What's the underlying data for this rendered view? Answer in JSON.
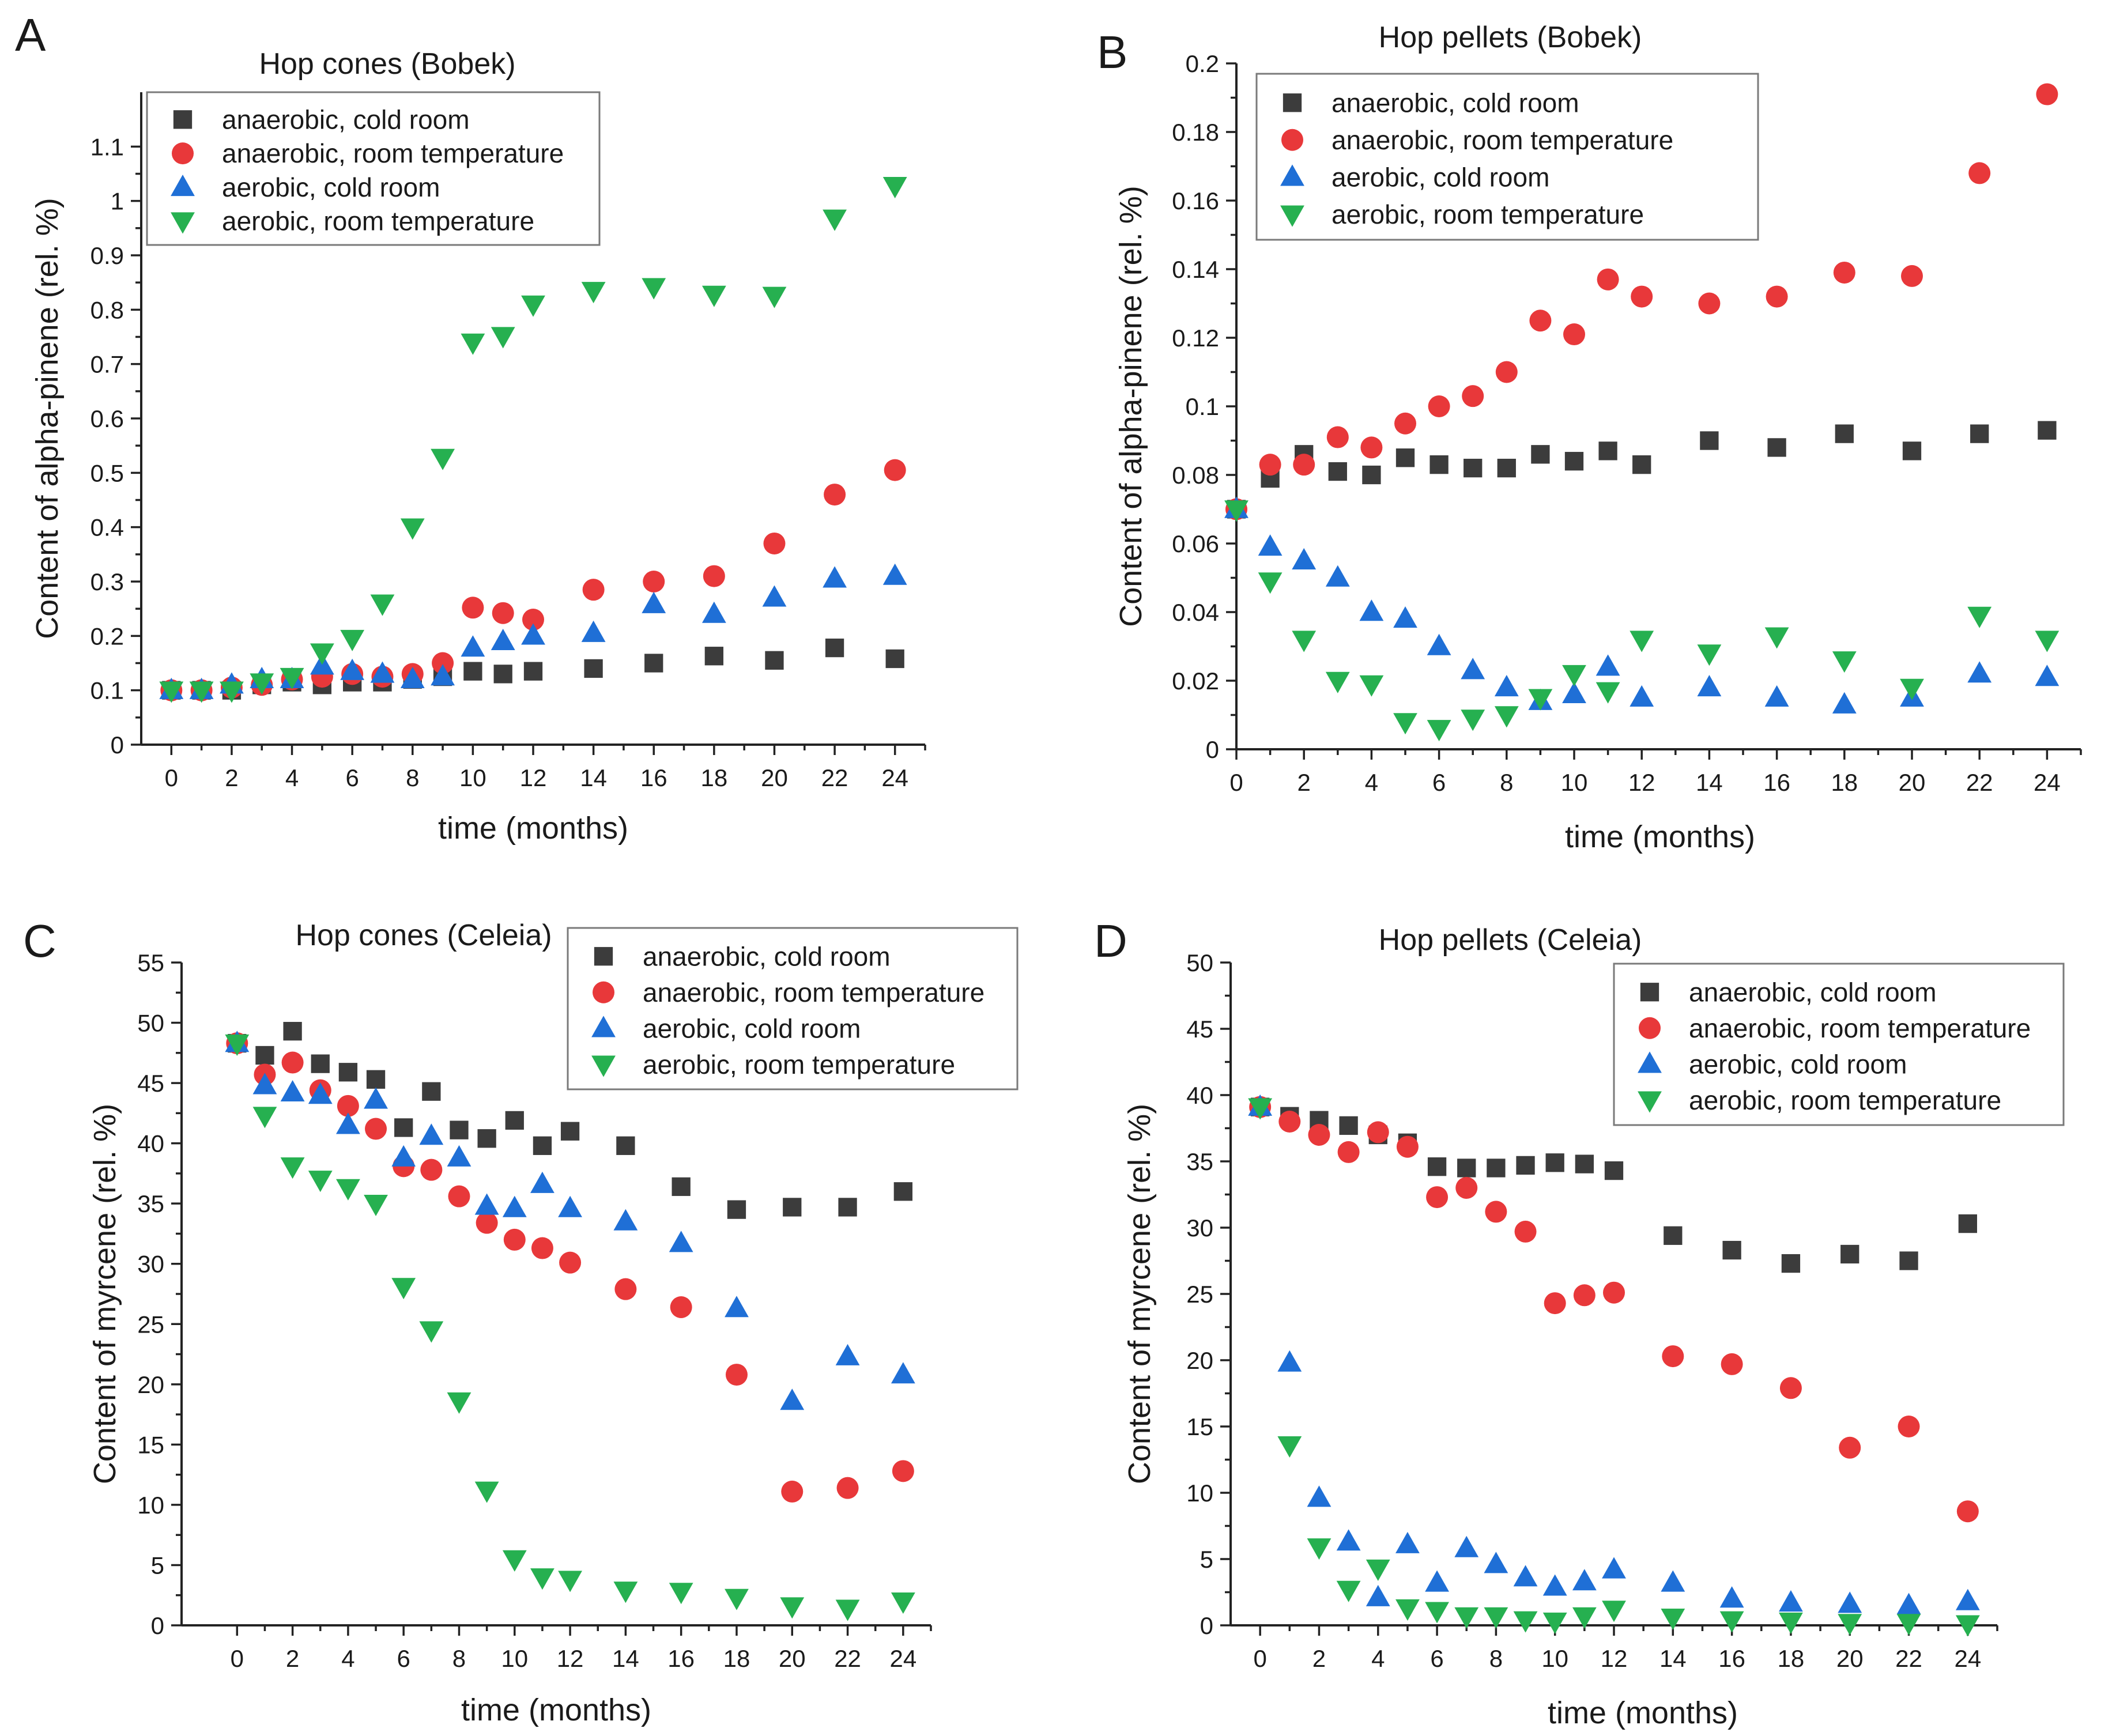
{
  "figure": {
    "colors": {
      "anaerobic_cold": "#3c3c3c",
      "anaerobic_room": "#e8383a",
      "aerobic_cold": "#1f6fd6",
      "aerobic_room": "#26b050"
    }
  },
  "chart_data": [
    {
      "id": "A",
      "panel_letter": "A",
      "type": "scatter",
      "title": "Hop cones (Bobek)",
      "xlabel": "time (months)",
      "ylabel": "Content of alpha-pinene (rel. %)",
      "xlim": [
        -1,
        25
      ],
      "ylim": [
        0,
        1.2
      ],
      "xticks": [
        0,
        2,
        4,
        6,
        8,
        10,
        12,
        14,
        16,
        18,
        20,
        22,
        24
      ],
      "yticks": [
        0,
        0.1,
        0.2,
        0.3,
        0.4,
        0.5,
        0.6,
        0.7,
        0.8,
        0.9,
        1,
        1.1
      ],
      "ytick_labels": [
        "0",
        "0.1",
        "0.2",
        "0.3",
        "0.4",
        "0.5",
        "0.6",
        "0.7",
        "0.8",
        "0.9",
        "1",
        "1.1"
      ],
      "legend_position": "top-left",
      "x": [
        0,
        1,
        2,
        3,
        4,
        5,
        6,
        7,
        8,
        9,
        10,
        11,
        12,
        14,
        16,
        18,
        20,
        22,
        24
      ],
      "series": [
        {
          "name": "anaerobic, cold room",
          "marker": "square",
          "color_key": "anaerobic_cold",
          "values": [
            0.1,
            0.1,
            0.1,
            0.11,
            0.115,
            0.11,
            0.115,
            0.115,
            0.12,
            0.125,
            0.135,
            0.13,
            0.135,
            0.14,
            0.15,
            0.163,
            0.155,
            0.178,
            0.158
          ]
        },
        {
          "name": "anaerobic, room temperature",
          "marker": "circle",
          "color_key": "anaerobic_room",
          "values": [
            0.1,
            0.1,
            0.105,
            0.11,
            0.12,
            0.125,
            0.13,
            0.125,
            0.13,
            0.15,
            0.252,
            0.242,
            0.23,
            0.285,
            0.3,
            0.31,
            0.37,
            0.46,
            0.505
          ]
        },
        {
          "name": "aerobic, cold room",
          "marker": "triangle-up",
          "color_key": "aerobic_cold",
          "values": [
            0.1,
            0.1,
            0.11,
            0.12,
            0.12,
            0.145,
            0.135,
            0.13,
            0.12,
            0.125,
            0.178,
            0.19,
            0.2,
            0.205,
            0.258,
            0.24,
            0.27,
            0.305,
            0.31
          ]
        },
        {
          "name": "aerobic, room temperature",
          "marker": "triangle-down",
          "color_key": "aerobic_room",
          "values": [
            0.1,
            0.1,
            0.1,
            0.115,
            0.125,
            0.17,
            0.195,
            0.26,
            0.4,
            0.528,
            0.74,
            0.752,
            0.81,
            0.835,
            0.842,
            0.828,
            0.826,
            0.968,
            1.028
          ]
        }
      ]
    },
    {
      "id": "B",
      "panel_letter": "B",
      "type": "scatter",
      "title": "Hop pellets (Bobek)",
      "xlabel": "time (months)",
      "ylabel": "Content of alpha-pinene (rel. %)",
      "xlim": [
        0,
        25
      ],
      "ylim": [
        0,
        0.2
      ],
      "xticks": [
        0,
        2,
        4,
        6,
        8,
        10,
        12,
        14,
        16,
        18,
        20,
        22,
        24
      ],
      "yticks": [
        0,
        0.02,
        0.04,
        0.06,
        0.08,
        0.1,
        0.12,
        0.14,
        0.16,
        0.18,
        0.2
      ],
      "ytick_labels": [
        "0",
        "0.02",
        "0.04",
        "0.06",
        "0.08",
        "0.1",
        "0.12",
        "0.14",
        "0.16",
        "0.18",
        "0.2"
      ],
      "legend_position": "top-left",
      "x": [
        0,
        1,
        2,
        3,
        4,
        5,
        6,
        7,
        8,
        9,
        10,
        11,
        12,
        14,
        16,
        18,
        20,
        22,
        24
      ],
      "series": [
        {
          "name": "anaerobic, cold room",
          "marker": "square",
          "color_key": "anaerobic_cold",
          "values": [
            0.07,
            0.079,
            0.086,
            0.081,
            0.08,
            0.085,
            0.083,
            0.082,
            0.082,
            0.086,
            0.084,
            0.087,
            0.083,
            0.09,
            0.088,
            0.092,
            0.087,
            0.092,
            0.093
          ]
        },
        {
          "name": "anaerobic, room temperature",
          "marker": "circle",
          "color_key": "anaerobic_room",
          "values": [
            0.07,
            0.083,
            0.083,
            0.091,
            0.088,
            0.095,
            0.1,
            0.103,
            0.11,
            0.125,
            0.121,
            0.137,
            0.132,
            0.13,
            0.132,
            0.139,
            0.138,
            0.168,
            0.191
          ]
        },
        {
          "name": "aerobic, cold room",
          "marker": "triangle-up",
          "color_key": "aerobic_cold",
          "values": [
            0.07,
            0.059,
            0.055,
            0.05,
            0.04,
            0.038,
            0.03,
            0.023,
            0.018,
            0.014,
            0.016,
            0.024,
            0.015,
            0.018,
            0.015,
            0.013,
            0.015,
            0.022,
            0.021
          ]
        },
        {
          "name": "aerobic, room temperature",
          "marker": "triangle-down",
          "color_key": "aerobic_room",
          "values": [
            0.07,
            0.049,
            0.032,
            0.02,
            0.019,
            0.008,
            0.006,
            0.009,
            0.01,
            0.015,
            0.022,
            0.017,
            0.032,
            0.028,
            0.033,
            0.026,
            0.018,
            0.039,
            0.032
          ]
        }
      ]
    },
    {
      "id": "C",
      "panel_letter": "C",
      "type": "scatter",
      "title": "Hop cones (Celeia)",
      "xlabel": "time (months)",
      "ylabel": "Content of myrcene (rel. %)",
      "xlim": [
        -2,
        25
      ],
      "ylim": [
        0,
        55
      ],
      "xticks": [
        0,
        2,
        4,
        6,
        8,
        10,
        12,
        14,
        16,
        18,
        20,
        22,
        24
      ],
      "yticks": [
        0,
        5,
        10,
        15,
        20,
        25,
        30,
        35,
        40,
        45,
        50,
        55
      ],
      "ytick_labels": [
        "0",
        "5",
        "10",
        "15",
        "20",
        "25",
        "30",
        "35",
        "40",
        "45",
        "50",
        "55"
      ],
      "legend_position": "top-right",
      "x": [
        0,
        1,
        2,
        3,
        4,
        5,
        6,
        7,
        8,
        9,
        10,
        11,
        12,
        14,
        16,
        18,
        20,
        22,
        24
      ],
      "series": [
        {
          "name": "anaerobic, cold room",
          "marker": "square",
          "color_key": "anaerobic_cold",
          "values": [
            48.3,
            47.3,
            49.3,
            46.6,
            45.9,
            45.3,
            41.3,
            44.3,
            41.1,
            40.4,
            41.9,
            39.8,
            41.0,
            39.8,
            36.4,
            34.5,
            34.7,
            34.7,
            36.0
          ]
        },
        {
          "name": "anaerobic, room temperature",
          "marker": "circle",
          "color_key": "anaerobic_room",
          "values": [
            48.3,
            45.7,
            46.7,
            44.4,
            43.1,
            41.2,
            38.1,
            37.8,
            35.6,
            33.4,
            32.0,
            31.3,
            30.1,
            27.9,
            26.4,
            20.8,
            11.1,
            11.4,
            12.8
          ]
        },
        {
          "name": "aerobic, cold room",
          "marker": "triangle-up",
          "color_key": "aerobic_cold",
          "values": [
            48.3,
            44.8,
            44.2,
            44.0,
            41.5,
            43.6,
            38.8,
            40.6,
            38.8,
            34.8,
            34.6,
            36.6,
            34.6,
            33.5,
            31.7,
            26.3,
            18.6,
            22.3,
            20.8
          ]
        },
        {
          "name": "aerobic, room temperature",
          "marker": "triangle-down",
          "color_key": "aerobic_room",
          "values": [
            48.3,
            42.3,
            38.1,
            37.0,
            36.3,
            35.0,
            28.1,
            24.5,
            18.6,
            11.2,
            5.5,
            4.0,
            3.8,
            2.9,
            2.8,
            2.3,
            1.6,
            1.4,
            2.0
          ]
        }
      ]
    },
    {
      "id": "D",
      "panel_letter": "D",
      "type": "scatter",
      "title": "Hop pellets (Celeia)",
      "xlabel": "time (months)",
      "ylabel": "Content of myrcene (rel. %)",
      "xlim": [
        -1,
        25
      ],
      "ylim": [
        0,
        50
      ],
      "xticks": [
        0,
        2,
        4,
        6,
        8,
        10,
        12,
        14,
        16,
        18,
        20,
        22,
        24
      ],
      "yticks": [
        0,
        5,
        10,
        15,
        20,
        25,
        30,
        35,
        40,
        45,
        50
      ],
      "ytick_labels": [
        "0",
        "5",
        "10",
        "15",
        "20",
        "25",
        "30",
        "35",
        "40",
        "45",
        "50"
      ],
      "legend_position": "top-right",
      "x": [
        0,
        1,
        2,
        3,
        4,
        5,
        6,
        7,
        8,
        9,
        10,
        11,
        12,
        14,
        16,
        18,
        20,
        22,
        24
      ],
      "series": [
        {
          "name": "anaerobic, cold room",
          "marker": "square",
          "color_key": "anaerobic_cold",
          "values": [
            39.1,
            38.4,
            38.1,
            37.7,
            37.0,
            36.4,
            34.6,
            34.5,
            34.5,
            34.7,
            34.9,
            34.8,
            34.3,
            29.4,
            28.3,
            27.3,
            28.0,
            27.5,
            30.3
          ]
        },
        {
          "name": "anaerobic, room temperature",
          "marker": "circle",
          "color_key": "anaerobic_room",
          "values": [
            39.1,
            38.0,
            37.0,
            35.7,
            37.2,
            36.1,
            32.3,
            33.0,
            31.2,
            29.7,
            24.3,
            24.9,
            25.1,
            20.3,
            19.7,
            17.9,
            13.4,
            15.0,
            8.6
          ]
        },
        {
          "name": "aerobic, cold room",
          "marker": "triangle-up",
          "color_key": "aerobic_cold",
          "values": [
            39.1,
            19.8,
            9.6,
            6.3,
            2.1,
            6.1,
            3.2,
            5.8,
            4.6,
            3.6,
            2.9,
            3.3,
            4.2,
            3.2,
            2.0,
            1.7,
            1.6,
            1.5,
            1.8
          ]
        },
        {
          "name": "aerobic, room temperature",
          "marker": "triangle-down",
          "color_key": "aerobic_room",
          "values": [
            39.1,
            13.6,
            5.9,
            2.7,
            4.3,
            1.3,
            1.1,
            0.7,
            0.7,
            0.4,
            0.3,
            0.7,
            1.2,
            0.6,
            0.4,
            0.3,
            0.2,
            0.2,
            0.1
          ]
        }
      ]
    }
  ]
}
